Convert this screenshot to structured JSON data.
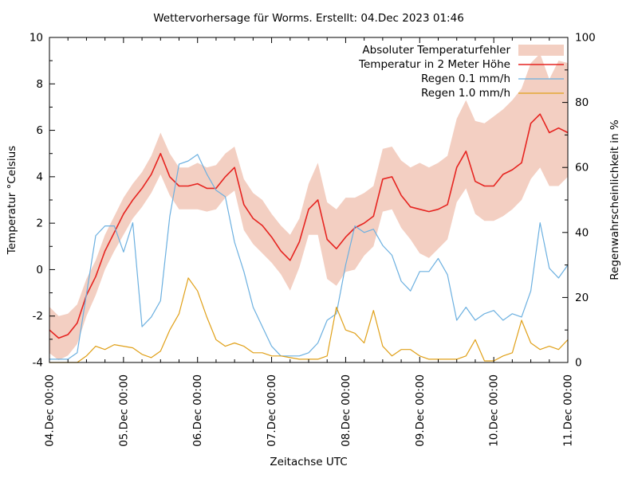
{
  "title": "Wettervorhersage für Worms. Erstellt: 04.Dec 2023 01:46",
  "axes": {
    "x": {
      "label": "Zeitachse UTC",
      "tick_labels": [
        "04.Dec 00:00",
        "05.Dec 00:00",
        "06.Dec 00:00",
        "07.Dec 00:00",
        "08.Dec 00:00",
        "09.Dec 00:00",
        "10.Dec 00:00",
        "11.Dec 00:00"
      ],
      "range_hours": [
        0,
        168
      ],
      "minor_tick_every_hours": 6
    },
    "y_left": {
      "label": "Temperatur °Celsius",
      "min": -4,
      "max": 10,
      "major_step": 2,
      "minor_step": 1,
      "tick_labels": [
        "-4",
        "-2",
        "0",
        "2",
        "4",
        "6",
        "8",
        "10"
      ]
    },
    "y_right": {
      "label": "Regenwahrscheinlichkeit in %",
      "min": 0,
      "max": 100,
      "major_step": 20,
      "minor_step": 10,
      "tick_labels": [
        "0",
        "20",
        "40",
        "60",
        "80",
        "100"
      ]
    },
    "grid": false
  },
  "legend": [
    {
      "label": "Absoluter Temperaturfehler",
      "type": "band",
      "color": "#f3cfc2"
    },
    {
      "label": "Temperatur in 2 Meter Höhe",
      "type": "line",
      "color": "#e62420"
    },
    {
      "label": "Regen 0.1 mm/h",
      "type": "line",
      "color": "#6cb0e0"
    },
    {
      "label": "Regen 1.0 mm/h",
      "type": "line",
      "color": "#e0a018"
    }
  ],
  "chart_data": {
    "type": "line",
    "x_unit": "hours since 04.Dec 2023 00:00 UTC",
    "hours": [
      0,
      3,
      6,
      9,
      12,
      15,
      18,
      21,
      24,
      27,
      30,
      33,
      36,
      39,
      42,
      45,
      48,
      51,
      54,
      57,
      60,
      63,
      66,
      69,
      72,
      75,
      78,
      81,
      84,
      87,
      90,
      93,
      96,
      99,
      102,
      105,
      108,
      111,
      114,
      117,
      120,
      123,
      126,
      129,
      132,
      135,
      138,
      141,
      144,
      147,
      150,
      153,
      156,
      159,
      162,
      165,
      168
    ],
    "band": {
      "name": "Absoluter Temperaturfehler",
      "axis": "y_left",
      "upper": [
        -1.6,
        -2.0,
        -1.9,
        -1.5,
        -0.4,
        0.4,
        1.5,
        2.3,
        3.1,
        3.7,
        4.2,
        4.9,
        5.9,
        5.0,
        4.4,
        4.4,
        4.6,
        4.4,
        4.5,
        5.0,
        5.3,
        3.9,
        3.3,
        3.0,
        2.4,
        1.9,
        1.5,
        2.2,
        3.7,
        4.6,
        2.9,
        2.6,
        3.1,
        3.1,
        3.3,
        3.6,
        5.2,
        5.3,
        4.7,
        4.4,
        4.6,
        4.4,
        4.6,
        4.9,
        6.5,
        7.3,
        6.4,
        6.3,
        6.6,
        6.9,
        7.3,
        7.8,
        8.9,
        9.3,
        8.2,
        9.0,
        8.9
      ],
      "lower": [
        -3.6,
        -3.9,
        -3.7,
        -3.2,
        -2.0,
        -1.1,
        0.0,
        0.8,
        1.5,
        2.2,
        2.7,
        3.3,
        4.1,
        3.2,
        2.6,
        2.6,
        2.6,
        2.5,
        2.6,
        3.1,
        3.4,
        1.7,
        1.1,
        0.7,
        0.3,
        -0.2,
        -0.9,
        0.1,
        1.5,
        1.5,
        -0.4,
        -0.7,
        -0.1,
        0.0,
        0.6,
        1.0,
        2.5,
        2.6,
        1.8,
        1.3,
        0.7,
        0.5,
        0.9,
        1.3,
        2.9,
        3.5,
        2.4,
        2.1,
        2.1,
        2.3,
        2.6,
        3.0,
        3.9,
        4.4,
        3.6,
        3.6,
        4.0
      ]
    },
    "series": [
      {
        "name": "Temperatur in 2 Meter Höhe",
        "axis": "y_left",
        "unit": "°C",
        "values": [
          -2.6,
          -2.95,
          -2.8,
          -2.3,
          -1.1,
          -0.3,
          0.8,
          1.6,
          2.4,
          3.0,
          3.5,
          4.1,
          5.0,
          4.0,
          3.6,
          3.6,
          3.7,
          3.5,
          3.5,
          4.0,
          4.4,
          2.8,
          2.2,
          1.9,
          1.4,
          0.8,
          0.4,
          1.2,
          2.6,
          3.0,
          1.3,
          0.9,
          1.4,
          1.8,
          2.0,
          2.3,
          3.9,
          4.0,
          3.2,
          2.7,
          2.6,
          2.5,
          2.6,
          2.8,
          4.4,
          5.1,
          3.8,
          3.6,
          3.6,
          4.1,
          4.3,
          4.6,
          6.3,
          6.7,
          5.9,
          6.1,
          5.9
        ]
      },
      {
        "name": "Regen 0.1 mm/h",
        "axis": "y_right",
        "unit": "%",
        "values": [
          1,
          1,
          1,
          3,
          21,
          39,
          42,
          42,
          34,
          43,
          11,
          14,
          19,
          45,
          61,
          62,
          64,
          58,
          53,
          51,
          37,
          28,
          17,
          11,
          5,
          2,
          2,
          2,
          3,
          6,
          13,
          15,
          30,
          42,
          40,
          41,
          36,
          33,
          25,
          22,
          28,
          28,
          32,
          27,
          13,
          17,
          13,
          15,
          16,
          13,
          15,
          14,
          22,
          43,
          29,
          26,
          30
        ]
      },
      {
        "name": "Regen 1.0 mm/h",
        "axis": "y_right",
        "unit": "%",
        "values": [
          0,
          0,
          0,
          0,
          2,
          5,
          4,
          5.5,
          5,
          4.5,
          2.5,
          1.5,
          3.5,
          10,
          15,
          26,
          22,
          14,
          7,
          5,
          6,
          5,
          3,
          3,
          2,
          2,
          1.5,
          1,
          1,
          1,
          2,
          17,
          10,
          9,
          6,
          16,
          5,
          2,
          4,
          4,
          2,
          1,
          1,
          1,
          1,
          2,
          7,
          0.5,
          0.5,
          2,
          3,
          13,
          6,
          4,
          5,
          4,
          7
        ]
      }
    ]
  }
}
